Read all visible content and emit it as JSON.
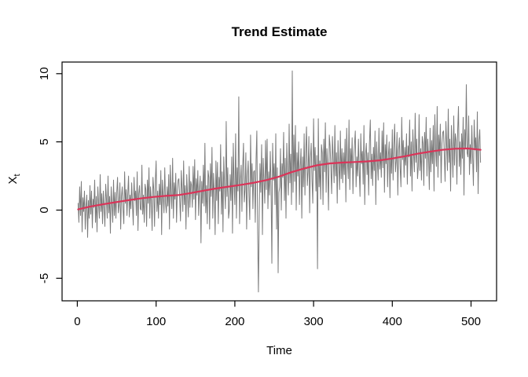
{
  "chart_data": {
    "type": "line",
    "title": "Trend Estimate",
    "xlabel": "Time",
    "ylabel_main": "X",
    "ylabel_sub": "t",
    "grid": false,
    "legend": null,
    "xlim": [
      -19.4,
      532.4
    ],
    "ylim": [
      -6.65,
      10.85
    ],
    "x_ticks": [
      0,
      100,
      200,
      300,
      400,
      500
    ],
    "y_ticks": [
      -5,
      0,
      5,
      10
    ],
    "series": [
      {
        "name": "observed-series",
        "color": "#7b7b7b",
        "line_width": 1,
        "x_start": 1,
        "x_step": 1,
        "values": [
          0.5,
          -0.9,
          1.7,
          -0.4,
          2.1,
          -1.6,
          0.9,
          -0.1,
          1.4,
          -1.4,
          0.3,
          1.1,
          -2.0,
          0.7,
          -0.6,
          1.8,
          -0.3,
          1.4,
          -1.3,
          0.8,
          0.2,
          2.2,
          -0.9,
          1.0,
          -1.6,
          1.7,
          0.4,
          -0.6,
          2.6,
          -0.1,
          1.2,
          -1.0,
          1.4,
          0.2,
          -1.2,
          1.9,
          0.8,
          -0.6,
          2.5,
          -0.2,
          1.0,
          -1.7,
          1.7,
          0.4,
          -0.9,
          2.2,
          -0.4,
          1.3,
          -0.6,
          1.3,
          2.4,
          -0.2,
          0.4,
          2.0,
          -1.4,
          1.0,
          1.7,
          0.1,
          -1.0,
          2.8,
          0.5,
          1.5,
          -0.4,
          1.2,
          2.5,
          -0.5,
          1.1,
          0.1,
          2.0,
          0.4,
          -1.1,
          2.4,
          0.7,
          1.4,
          -0.4,
          2.8,
          -1.5,
          1.2,
          1.8,
          0.1,
          0.0,
          3.3,
          -0.3,
          1.1,
          -0.9,
          1.9,
          1.5,
          -1.2,
          2.2,
          0.5,
          3.1,
          -0.6,
          1.7,
          0.7,
          -1.5,
          2.4,
          1.5,
          -1.2,
          2.1,
          3.6,
          -0.1,
          1.4,
          -0.6,
          1.9,
          0.4,
          2.9,
          -1.8,
          2.2,
          1.0,
          -0.2,
          3.1,
          0.5,
          -0.2,
          1.7,
          0.3,
          2.6,
          -1.4,
          3.3,
          1.2,
          0.1,
          3.8,
          -0.6,
          2.0,
          0.8,
          2.7,
          -0.9,
          1.4,
          2.2,
          2.3,
          0.8,
          -0.8,
          2.9,
          1.5,
          -0.1,
          3.6,
          0.4,
          1.8,
          -1.4,
          2.6,
          1.1,
          -0.5,
          3.2,
          0.2,
          2.1,
          1.8,
          0.2,
          3.2,
          0.8,
          3.7,
          -0.7,
          2.3,
          1.1,
          2.9,
          -0.4,
          1.6,
          2.5,
          -2.4,
          2.1,
          0.5,
          3.3,
          0.3,
          4.9,
          -0.2,
          1.8,
          -1.0,
          2.9,
          2.4,
          -1.4,
          3.4,
          1.0,
          4.6,
          -0.6,
          2.7,
          1.3,
          -1.8,
          3.6,
          0.7,
          3.5,
          -1.0,
          2.4,
          1.4,
          4.8,
          -0.3,
          2.8,
          -1.6,
          3.9,
          1.8,
          0.1,
          6.5,
          1.0,
          3.1,
          -0.6,
          0.0,
          2.6,
          0.7,
          3.9,
          -1.7,
          4.9,
          1.9,
          0.4,
          5.6,
          -0.6,
          3.1,
          1.4,
          8.3,
          -1.0,
          2.2,
          3.3,
          -0.1,
          3.1,
          4.9,
          0.6,
          1.5,
          4.2,
          -1.4,
          2.5,
          3.6,
          1.0,
          -0.7,
          5.5,
          1.7,
          3.4,
          0.1,
          2.8,
          2.9,
          -0.9,
          3.7,
          5.8,
          -1.5,
          -6.0,
          -0.5,
          3.4,
          1.3,
          4.8,
          -1.8,
          3.8,
          2.2,
          0.5,
          5.1,
          1.5,
          5.2,
          0.1,
          2.8,
          1.1,
          4.3,
          1.7,
          -3.9,
          4.9,
          2.2,
          3.4,
          0.4,
          5.6,
          -1.4,
          3.1,
          -4.6,
          1.3,
          1.7,
          4.5,
          0.0,
          3.4,
          2.4,
          5.7,
          0.7,
          3.8,
          -0.6,
          4.9,
          2.8,
          1.1,
          6.3,
          2.0,
          4.1,
          0.4,
          10.2,
          1.3,
          5.5,
          2.1,
          6.2,
          0.0,
          4.2,
          2.5,
          5.0,
          0.4,
          3.2,
          4.5,
          -0.6,
          3.9,
          1.7,
          5.6,
          1.1,
          4.3,
          6.1,
          1.8,
          2.8,
          5.4,
          -0.2,
          3.8,
          4.9,
          2.2,
          0.5,
          6.7,
          2.9,
          4.6,
          1.4,
          4.0,
          -4.3,
          6.7,
          1.7,
          3.6,
          0.8,
          4.8,
          4.2,
          0.4,
          5.2,
          2.8,
          6.4,
          1.3,
          4.5,
          3.1,
          0.0,
          5.5,
          4.7,
          3.0,
          1.2,
          5.4,
          3.8,
          2.0,
          6.2,
          2.5,
          4.2,
          0.5,
          5.1,
          3.3,
          1.5,
          5.8,
          2.3,
          4.5,
          2.0,
          4.2,
          2.6,
          5.2,
          0.6,
          6.0,
          3.6,
          2.3,
          6.6,
          1.5,
          4.5,
          3.1,
          5.3,
          1.2,
          3.8,
          4.8,
          5.8,
          1.7,
          3.9,
          2.5,
          5.2,
          3.0,
          1.0,
          5.6,
          3.4,
          4.3,
          1.9,
          6.2,
          0.4,
          4.1,
          4.9,
          2.6,
          4.2,
          1.1,
          4.9,
          6.6,
          2.3,
          4.1,
          1.8,
          4.6,
          2.9,
          5.8,
          0.4,
          5.0,
          3.6,
          2.2,
          6.0,
          3.0,
          4.2,
          2.4,
          5.8,
          3.1,
          6.4,
          1.3,
          4.8,
          3.4,
          5.5,
          1.7,
          4.0,
          5.0,
          0.9,
          4.5,
          2.7,
          5.9,
          2.2,
          4.8,
          6.3,
          2.8,
          3.6,
          5.7,
          1.1,
          4.4,
          5.3,
          3.1,
          1.7,
          6.8,
          3.7,
          5.1,
          2.4,
          4.6,
          3.3,
          5.6,
          1.9,
          4.7,
          3.9,
          6.6,
          2.5,
          5.0,
          1.4,
          5.9,
          4.2,
          2.8,
          7.1,
          3.5,
          5.2,
          2.3,
          3.2,
          7.0,
          2.9,
          4.5,
          2.2,
          5.4,
          4.9,
          1.8,
          5.7,
          3.8,
          6.8,
          2.5,
          5.2,
          4.0,
          1.5,
          6.0,
          2.8,
          5.1,
          3.4,
          6.2,
          1.4,
          7.0,
          4.5,
          3.2,
          7.6,
          2.4,
          5.5,
          4.0,
          6.3,
          2.0,
          4.8,
          5.7,
          5.8,
          4.0,
          2.1,
          6.5,
          4.8,
          2.9,
          7.4,
          3.5,
          5.2,
          1.4,
          6.2,
          4.4,
          2.4,
          6.9,
          3.3,
          5.6,
          5.1,
          1.9,
          5.8,
          7.6,
          3.2,
          5.0,
          2.6,
          5.6,
          3.8,
          6.8,
          1.1,
          5.9,
          4.5,
          9.2,
          4.2,
          3.9,
          6.9,
          2.6,
          4.8,
          3.4,
          6.2,
          3.9,
          1.8,
          6.6,
          4.4,
          5.3,
          2.8,
          7.2,
          1.2,
          5.1,
          5.9,
          3.5
        ]
      },
      {
        "name": "trend-estimate",
        "color": "#db3358",
        "line_width": 2.2,
        "x": [
          1,
          16,
          32,
          48,
          64,
          80,
          96,
          112,
          128,
          144,
          160,
          176,
          192,
          208,
          224,
          240,
          256,
          272,
          288,
          304,
          320,
          336,
          352,
          368,
          384,
          400,
          416,
          432,
          448,
          464,
          480,
          496,
          512
        ],
        "values": [
          0.05,
          0.25,
          0.42,
          0.57,
          0.72,
          0.85,
          0.96,
          1.04,
          1.1,
          1.25,
          1.42,
          1.58,
          1.72,
          1.85,
          2.0,
          2.2,
          2.45,
          2.78,
          3.05,
          3.28,
          3.42,
          3.48,
          3.52,
          3.57,
          3.65,
          3.78,
          3.95,
          4.13,
          4.28,
          4.42,
          4.5,
          4.52,
          4.42
        ]
      }
    ]
  },
  "figure": {
    "background": "#ffffff",
    "axis_color": "#000000",
    "text_color": "#000000"
  }
}
